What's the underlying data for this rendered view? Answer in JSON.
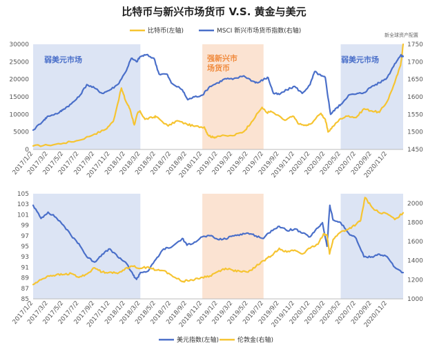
{
  "page": {
    "title": "比特币与新兴市场货币 V.S. 黄金与美元",
    "source": "新全球资产配置"
  },
  "colors": {
    "blue": "#4A6FC9",
    "gold": "#F6C431",
    "blue_shade": "#DCE4F4",
    "orange_shade": "#FBE3D2",
    "orange_text": "#F08A3C",
    "blue_text": "#4A6FC9"
  },
  "x_tick_labels": [
    "2017/1/2",
    "2017/3/2",
    "2017/5/2",
    "2017/7/2",
    "2017/9/2",
    "2017/11/2",
    "2018/1/2",
    "2018/3/2",
    "2018/5/2",
    "2018/7/2",
    "2018/9/2",
    "2018/11/2",
    "2019/1/2",
    "2019/3/2",
    "2019/5/2",
    "2019/7/2",
    "2019/9/2",
    "2019/11/2",
    "2020/1/2",
    "2020/3/2",
    "2020/5/2",
    "2020/7/2",
    "2020/9/2",
    "2020/11/2"
  ],
  "chart_data": [
    {
      "type": "line",
      "legend": [
        "比特币(左轴)",
        "MSCI 新兴市场货币指数(右轴)"
      ],
      "annotations": [
        "弱美元市场",
        "强新兴市场货币",
        "弱美元市场"
      ],
      "y_left": {
        "ylim": [
          0,
          30000
        ],
        "ticks": [
          "0",
          "5000",
          "10000",
          "15000",
          "20000",
          "25000",
          "30000"
        ]
      },
      "y_right": {
        "ylim": [
          1450,
          1750
        ],
        "ticks": [
          "1450",
          "1500",
          "1550",
          "1600",
          "1650",
          "1700",
          "1750"
        ]
      },
      "shaded_periods": [
        {
          "from": "2017/1/2",
          "to": "2018/3/2",
          "kind": "weak-dollar"
        },
        {
          "from": "2018/11/2",
          "to": "2019/7/2",
          "kind": "strong-em-currency"
        },
        {
          "from": "2020/5/2",
          "to": "2021/1/4",
          "kind": "weak-dollar"
        }
      ],
      "series": [
        {
          "name": "比特币(左轴)",
          "axis": "left",
          "color": "#F6C431",
          "points": [
            [
              "2017/1/2",
              1000
            ],
            [
              "2017/3/2",
              1200
            ],
            [
              "2017/5/2",
              1800
            ],
            [
              "2017/7/2",
              2600
            ],
            [
              "2017/9/2",
              4400
            ],
            [
              "2017/10/15",
              5700
            ],
            [
              "2017/11/15",
              8000
            ],
            [
              "2017/12/17",
              17500
            ],
            [
              "2018/1/2",
              14000
            ],
            [
              "2018/1/20",
              11500
            ],
            [
              "2018/2/6",
              7000
            ],
            [
              "2018/2/20",
              10500
            ],
            [
              "2018/3/2",
              10800
            ],
            [
              "2018/3/20",
              8600
            ],
            [
              "2018/4/25",
              9200
            ],
            [
              "2018/5/2",
              9400
            ],
            [
              "2018/6/20",
              6700
            ],
            [
              "2018/7/25",
              8200
            ],
            [
              "2018/9/2",
              7200
            ],
            [
              "2018/10/2",
              6600
            ],
            [
              "2018/11/10",
              6400
            ],
            [
              "2018/11/25",
              4100
            ],
            [
              "2018/12/15",
              3400
            ],
            [
              "2019/1/2",
              3800
            ],
            [
              "2019/3/2",
              3900
            ],
            [
              "2019/4/15",
              5100
            ],
            [
              "2019/5/15",
              7800
            ],
            [
              "2019/6/26",
              12000
            ],
            [
              "2019/7/15",
              10500
            ],
            [
              "2019/8/2",
              10800
            ],
            [
              "2019/9/25",
              8300
            ],
            [
              "2019/10/26",
              9500
            ],
            [
              "2019/11/20",
              7200
            ],
            [
              "2019/12/18",
              6800
            ],
            [
              "2020/1/2",
              7200
            ],
            [
              "2020/2/14",
              10300
            ],
            [
              "2020/3/2",
              8600
            ],
            [
              "2020/3/13",
              5000
            ],
            [
              "2020/4/2",
              6600
            ],
            [
              "2020/5/2",
              8800
            ],
            [
              "2020/6/2",
              9600
            ],
            [
              "2020/7/2",
              9100
            ],
            [
              "2020/8/2",
              11600
            ],
            [
              "2020/9/2",
              11000
            ],
            [
              "2020/10/2",
              10600
            ],
            [
              "2020/11/2",
              13700
            ],
            [
              "2020/12/2",
              19100
            ],
            [
              "2020/12/25",
              24000
            ],
            [
              "2021/1/4",
              30000
            ]
          ]
        },
        {
          "name": "MSCI 新兴市场货币指数(右轴)",
          "axis": "right",
          "color": "#4A6FC9",
          "points": [
            [
              "2017/1/2",
              1505
            ],
            [
              "2017/2/15",
              1535
            ],
            [
              "2017/3/2",
              1545
            ],
            [
              "2017/4/15",
              1555
            ],
            [
              "2017/5/2",
              1565
            ],
            [
              "2017/6/2",
              1580
            ],
            [
              "2017/7/2",
              1600
            ],
            [
              "2017/8/2",
              1635
            ],
            [
              "2017/9/2",
              1625
            ],
            [
              "2017/10/2",
              1610
            ],
            [
              "2017/11/2",
              1620
            ],
            [
              "2017/12/2",
              1635
            ],
            [
              "2018/1/2",
              1670
            ],
            [
              "2018/1/25",
              1710
            ],
            [
              "2018/2/15",
              1700
            ],
            [
              "2018/3/2",
              1715
            ],
            [
              "2018/3/25",
              1720
            ],
            [
              "2018/4/25",
              1710
            ],
            [
              "2018/5/15",
              1665
            ],
            [
              "2018/6/15",
              1665
            ],
            [
              "2018/7/2",
              1640
            ],
            [
              "2018/8/15",
              1620
            ],
            [
              "2018/9/5",
              1592
            ],
            [
              "2018/10/2",
              1600
            ],
            [
              "2018/11/2",
              1605
            ],
            [
              "2018/12/2",
              1630
            ],
            [
              "2019/1/2",
              1640
            ],
            [
              "2019/2/1",
              1652
            ],
            [
              "2019/3/2",
              1650
            ],
            [
              "2019/4/15",
              1660
            ],
            [
              "2019/5/20",
              1645
            ],
            [
              "2019/6/10",
              1640
            ],
            [
              "2019/7/2",
              1650
            ],
            [
              "2019/7/20",
              1655
            ],
            [
              "2019/8/10",
              1610
            ],
            [
              "2019/9/2",
              1607
            ],
            [
              "2019/10/2",
              1620
            ],
            [
              "2019/11/2",
              1630
            ],
            [
              "2019/12/2",
              1610
            ],
            [
              "2020/1/2",
              1635
            ],
            [
              "2020/1/20",
              1672
            ],
            [
              "2020/2/15",
              1660
            ],
            [
              "2020/3/2",
              1655
            ],
            [
              "2020/3/15",
              1590
            ],
            [
              "2020/3/23",
              1550
            ],
            [
              "2020/4/15",
              1568
            ],
            [
              "2020/5/2",
              1578
            ],
            [
              "2020/6/2",
              1605
            ],
            [
              "2020/7/2",
              1608
            ],
            [
              "2020/8/2",
              1612
            ],
            [
              "2020/9/2",
              1630
            ],
            [
              "2020/10/2",
              1640
            ],
            [
              "2020/11/2",
              1655
            ],
            [
              "2020/12/2",
              1695
            ],
            [
              "2020/12/25",
              1718
            ],
            [
              "2021/1/4",
              1715
            ]
          ]
        }
      ]
    },
    {
      "type": "line",
      "legend": [
        "美元指数(左轴)",
        "伦敦金(右轴)"
      ],
      "y_left": {
        "ylim": [
          85,
          105
        ],
        "ticks": [
          "85",
          "87",
          "89",
          "91",
          "93",
          "95",
          "97",
          "99",
          "101",
          "103",
          "105"
        ]
      },
      "y_right": {
        "ylim": [
          1000,
          2100
        ],
        "ticks": [
          "1000",
          "1200",
          "1400",
          "1600",
          "1800",
          "2000"
        ]
      },
      "shaded_periods": [
        {
          "from": "2017/1/2",
          "to": "2018/3/2",
          "kind": "weak-dollar"
        },
        {
          "from": "2018/11/2",
          "to": "2019/7/2",
          "kind": "strong-em-currency"
        },
        {
          "from": "2020/5/2",
          "to": "2021/1/4",
          "kind": "weak-dollar"
        }
      ],
      "series": [
        {
          "name": "美元指数(左轴)",
          "axis": "left",
          "color": "#4A6FC9",
          "points": [
            [
              "2017/1/2",
              102.8
            ],
            [
              "2017/2/2",
              100.3
            ],
            [
              "2017/3/2",
              101.5
            ],
            [
              "2017/4/2",
              100.5
            ],
            [
              "2017/5/2",
              99.0
            ],
            [
              "2017/6/2",
              97.0
            ],
            [
              "2017/7/2",
              95.5
            ],
            [
              "2017/8/2",
              93.0
            ],
            [
              "2017/9/2",
              92.0
            ],
            [
              "2017/10/2",
              93.5
            ],
            [
              "2017/11/2",
              94.5
            ],
            [
              "2017/12/2",
              93.0
            ],
            [
              "2018/1/2",
              92.0
            ],
            [
              "2018/2/2",
              89.5
            ],
            [
              "2018/2/15",
              88.7
            ],
            [
              "2018/3/2",
              90.0
            ],
            [
              "2018/4/2",
              90.3
            ],
            [
              "2018/5/2",
              92.5
            ],
            [
              "2018/6/2",
              94.5
            ],
            [
              "2018/7/2",
              94.8
            ],
            [
              "2018/8/15",
              96.5
            ],
            [
              "2018/9/2",
              95.2
            ],
            [
              "2018/10/2",
              95.8
            ],
            [
              "2018/11/2",
              96.8
            ],
            [
              "2018/12/2",
              97.0
            ],
            [
              "2019/1/2",
              96.3
            ],
            [
              "2019/2/2",
              96.4
            ],
            [
              "2019/3/2",
              97.0
            ],
            [
              "2019/4/2",
              97.3
            ],
            [
              "2019/5/2",
              97.5
            ],
            [
              "2019/6/2",
              97.0
            ],
            [
              "2019/7/2",
              96.5
            ],
            [
              "2019/8/2",
              98.0
            ],
            [
              "2019/9/2",
              98.8
            ],
            [
              "2019/10/2",
              98.0
            ],
            [
              "2019/11/2",
              98.3
            ],
            [
              "2019/12/2",
              97.5
            ],
            [
              "2020/1/2",
              96.8
            ],
            [
              "2020/2/2",
              98.5
            ],
            [
              "2020/2/20",
              99.5
            ],
            [
              "2020/3/9",
              95.0
            ],
            [
              "2020/3/20",
              102.8
            ],
            [
              "2020/4/2",
              100.0
            ],
            [
              "2020/5/2",
              99.5
            ],
            [
              "2020/6/2",
              97.5
            ],
            [
              "2020/7/2",
              96.5
            ],
            [
              "2020/8/2",
              93.0
            ],
            [
              "2020/9/2",
              93.0
            ],
            [
              "2020/10/2",
              93.5
            ],
            [
              "2020/11/2",
              93.0
            ],
            [
              "2020/12/2",
              91.0
            ],
            [
              "2021/1/4",
              90.0
            ]
          ]
        },
        {
          "name": "伦敦金(右轴)",
          "axis": "right",
          "color": "#F6C431",
          "points": [
            [
              "2017/1/2",
              1150
            ],
            [
              "2017/2/2",
              1200
            ],
            [
              "2017/3/2",
              1240
            ],
            [
              "2017/4/2",
              1250
            ],
            [
              "2017/5/2",
              1255
            ],
            [
              "2017/6/2",
              1265
            ],
            [
              "2017/7/2",
              1225
            ],
            [
              "2017/8/2",
              1260
            ],
            [
              "2017/9/2",
              1325
            ],
            [
              "2017/10/2",
              1280
            ],
            [
              "2017/11/2",
              1280
            ],
            [
              "2017/12/2",
              1265
            ],
            [
              "2018/1/2",
              1320
            ],
            [
              "2018/2/2",
              1340
            ],
            [
              "2018/3/2",
              1320
            ],
            [
              "2018/4/2",
              1335
            ],
            [
              "2018/5/2",
              1300
            ],
            [
              "2018/6/2",
              1295
            ],
            [
              "2018/7/2",
              1250
            ],
            [
              "2018/8/15",
              1180
            ],
            [
              "2018/9/2",
              1195
            ],
            [
              "2018/10/2",
              1200
            ],
            [
              "2018/11/2",
              1225
            ],
            [
              "2018/12/2",
              1240
            ],
            [
              "2019/1/2",
              1285
            ],
            [
              "2019/2/2",
              1320
            ],
            [
              "2019/3/2",
              1300
            ],
            [
              "2019/4/2",
              1285
            ],
            [
              "2019/5/2",
              1280
            ],
            [
              "2019/6/2",
              1340
            ],
            [
              "2019/7/2",
              1400
            ],
            [
              "2019/8/2",
              1450
            ],
            [
              "2019/9/2",
              1530
            ],
            [
              "2019/10/2",
              1490
            ],
            [
              "2019/11/2",
              1510
            ],
            [
              "2019/12/2",
              1470
            ],
            [
              "2020/1/2",
              1530
            ],
            [
              "2020/2/2",
              1570
            ],
            [
              "2020/2/24",
              1680
            ],
            [
              "2020/3/9",
              1670
            ],
            [
              "2020/3/19",
              1470
            ],
            [
              "2020/4/2",
              1620
            ],
            [
              "2020/5/2",
              1700
            ],
            [
              "2020/6/2",
              1730
            ],
            [
              "2020/7/2",
              1780
            ],
            [
              "2020/7/20",
              1820
            ],
            [
              "2020/8/6",
              2060
            ],
            [
              "2020/9/2",
              1960
            ],
            [
              "2020/10/2",
              1900
            ],
            [
              "2020/11/2",
              1890
            ],
            [
              "2020/12/2",
              1830
            ],
            [
              "2021/1/4",
              1900
            ]
          ]
        }
      ]
    }
  ]
}
